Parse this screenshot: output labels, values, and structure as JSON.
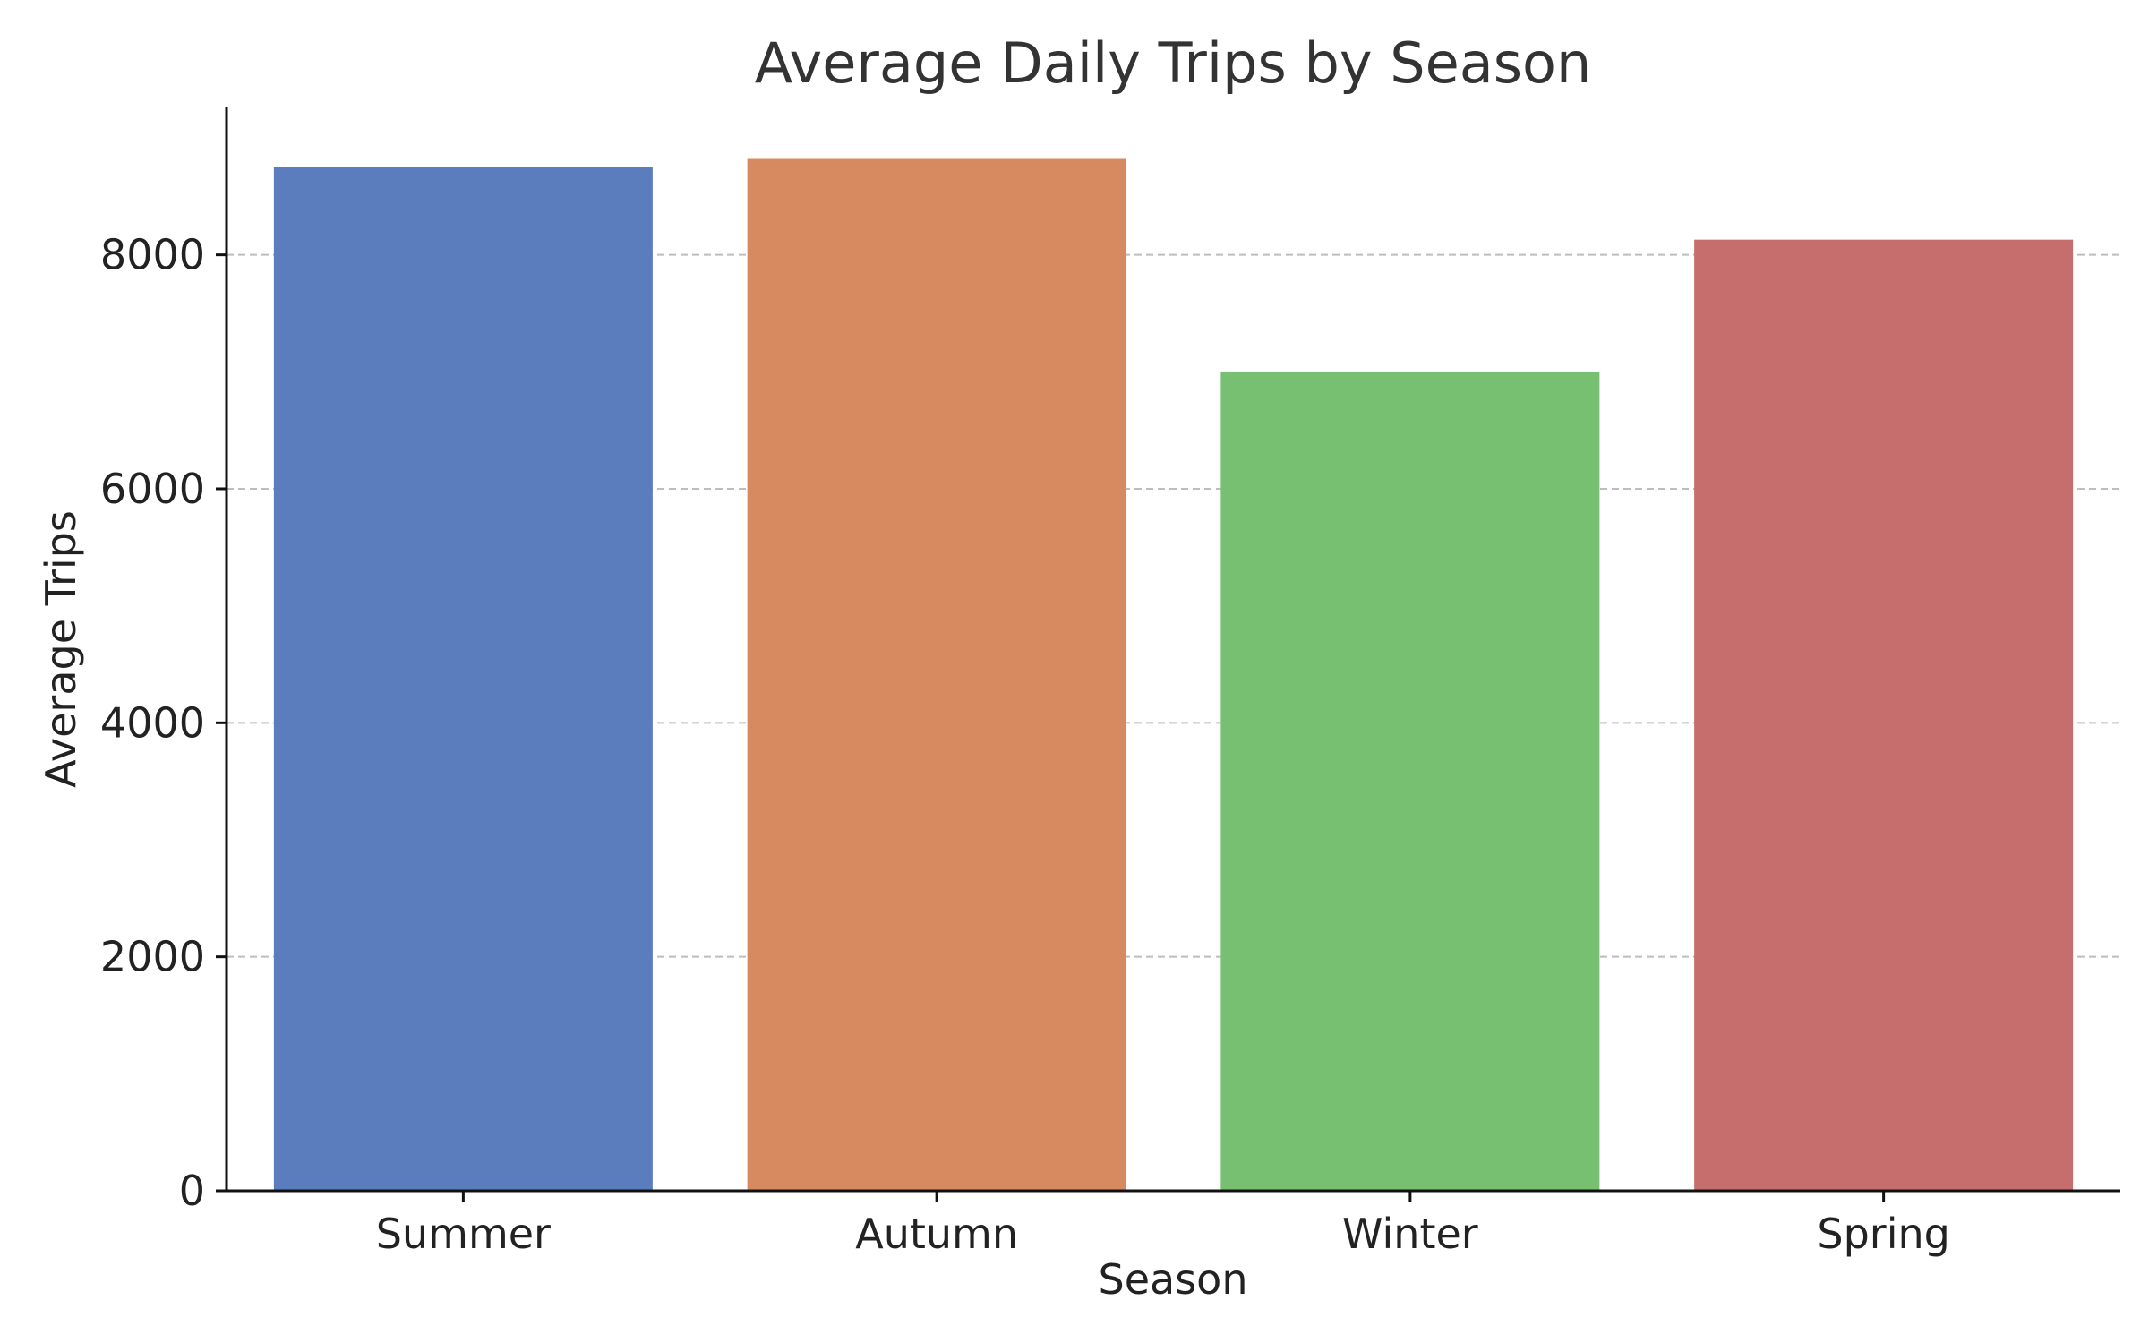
{
  "chart_data": {
    "type": "bar",
    "title": "Average Daily Trips by Season",
    "xlabel": "Season",
    "ylabel": "Average Trips",
    "categories": [
      "Summer",
      "Autumn",
      "Winter",
      "Spring"
    ],
    "values": [
      8750,
      8820,
      7000,
      8130
    ],
    "colors": [
      "#5b7dbe",
      "#d78a5f",
      "#77bf71",
      "#c56e6d"
    ],
    "ylim": [
      0,
      9260
    ],
    "yticks": [
      0,
      2000,
      4000,
      6000,
      8000
    ],
    "grid": true,
    "grid_axis": "y",
    "legend": false
  }
}
